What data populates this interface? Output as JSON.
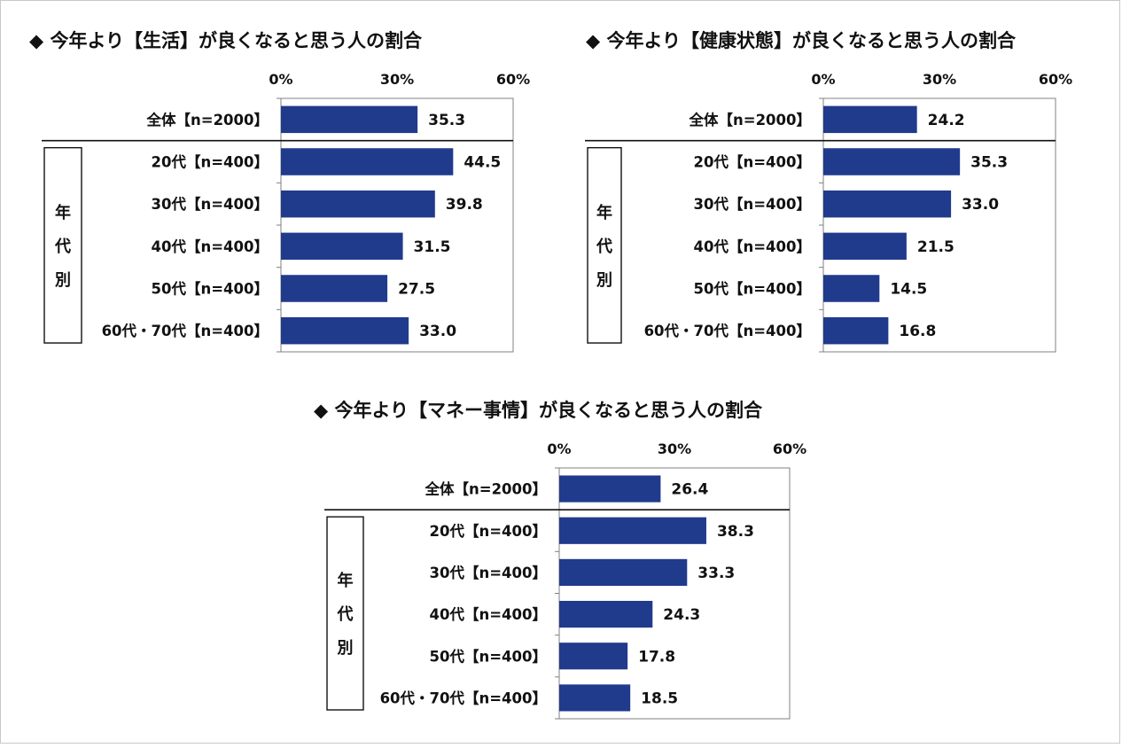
{
  "chart_data": [
    {
      "type": "bar",
      "orientation": "horizontal",
      "title": "◆ 今年より【生活】が良くなると思う人の割合",
      "categories": [
        "全体【n=2000】",
        "20代【n=400】",
        "30代【n=400】",
        "40代【n=400】",
        "50代【n=400】",
        "60代・70代【n=400】"
      ],
      "values": [
        35.3,
        44.5,
        39.8,
        31.5,
        27.5,
        33.0
      ],
      "value_labels": [
        "35.3",
        "44.5",
        "39.8",
        "31.5",
        "27.5",
        "33.0"
      ],
      "ticks": [
        "0%",
        "30%",
        "60%"
      ],
      "xlim": [
        0,
        60
      ],
      "group_label": [
        "年",
        "代",
        "別"
      ],
      "bar_color": "#203a8c",
      "grid": false
    },
    {
      "type": "bar",
      "orientation": "horizontal",
      "title": "◆ 今年より【健康状態】が良くなると思う人の割合",
      "categories": [
        "全体【n=2000】",
        "20代【n=400】",
        "30代【n=400】",
        "40代【n=400】",
        "50代【n=400】",
        "60代・70代【n=400】"
      ],
      "values": [
        24.2,
        35.3,
        33.0,
        21.5,
        14.5,
        16.8
      ],
      "value_labels": [
        "24.2",
        "35.3",
        "33.0",
        "21.5",
        "14.5",
        "16.8"
      ],
      "ticks": [
        "0%",
        "30%",
        "60%"
      ],
      "xlim": [
        0,
        60
      ],
      "group_label": [
        "年",
        "代",
        "別"
      ],
      "bar_color": "#203a8c",
      "grid": false
    },
    {
      "type": "bar",
      "orientation": "horizontal",
      "title": "◆ 今年より【マネー事情】が良くなると思う人の割合",
      "categories": [
        "全体【n=2000】",
        "20代【n=400】",
        "30代【n=400】",
        "40代【n=400】",
        "50代【n=400】",
        "60代・70代【n=400】"
      ],
      "values": [
        26.4,
        38.3,
        33.3,
        24.3,
        17.8,
        18.5
      ],
      "value_labels": [
        "26.4",
        "38.3",
        "33.3",
        "24.3",
        "17.8",
        "18.5"
      ],
      "ticks": [
        "0%",
        "30%",
        "60%"
      ],
      "xlim": [
        0,
        60
      ],
      "group_label": [
        "年",
        "代",
        "別"
      ],
      "bar_color": "#203a8c",
      "grid": false
    }
  ]
}
